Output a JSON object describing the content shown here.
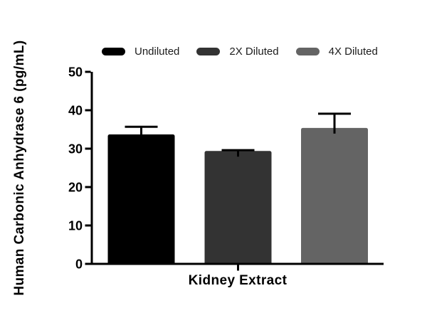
{
  "figure": {
    "background": "#ffffff",
    "axis_color": "#000000",
    "error_bar_color": "#000000",
    "text_color": "#000000"
  },
  "chart_data": {
    "type": "bar",
    "title": "",
    "ylabel": "Human Carbonic Anhydrase 6 (pg/mL)",
    "xlabel": "",
    "categories": [
      "Kidney Extract"
    ],
    "series": [
      {
        "name": "Undiluted",
        "values": [
          33.7
        ],
        "errors": [
          2.0
        ],
        "color": "#000000"
      },
      {
        "name": "2X Diluted",
        "values": [
          29.4
        ],
        "errors": [
          0.2
        ],
        "color": "#333333"
      },
      {
        "name": "4X Diluted",
        "values": [
          35.4
        ],
        "errors": [
          3.7
        ],
        "color": "#646464"
      }
    ],
    "ylim": [
      0,
      50
    ],
    "yticks": [
      0,
      10,
      20,
      30,
      40,
      50
    ],
    "grid": false,
    "legend_position": "top",
    "error_bars": "sd, caps half bar width"
  }
}
